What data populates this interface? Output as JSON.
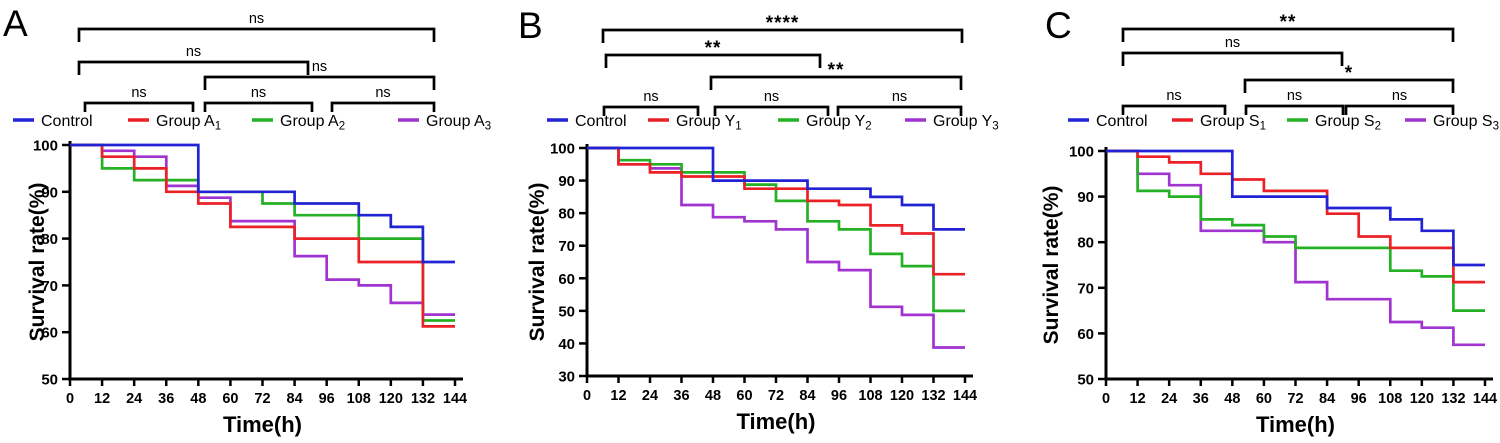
{
  "figure_title": "",
  "chart_data": [
    {
      "type": "line",
      "style": "kaplan-meier-step",
      "panel_letter": "A",
      "xlabel": "Time(h)",
      "ylabel": "Survival rate(%)",
      "xlim": [
        0,
        144
      ],
      "ylim": [
        50,
        100
      ],
      "x_ticks": [
        0,
        12,
        24,
        36,
        48,
        60,
        72,
        84,
        96,
        108,
        120,
        132,
        144
      ],
      "y_ticks": [
        50,
        60,
        70,
        80,
        90,
        100
      ],
      "grid": false,
      "legend_position": "top",
      "series": [
        {
          "name": "Control",
          "sub": "",
          "color": "#2323D6",
          "points": [
            [
              0,
              100
            ],
            [
              48,
              90
            ],
            [
              84,
              87.5
            ],
            [
              108,
              85
            ],
            [
              120,
              82.5
            ],
            [
              132,
              75
            ],
            [
              144,
              75
            ]
          ]
        },
        {
          "name": "Group A",
          "sub": "1",
          "color": "#EB2128",
          "points": [
            [
              0,
              100
            ],
            [
              12,
              97.5
            ],
            [
              24,
              95
            ],
            [
              36,
              90
            ],
            [
              48,
              87.5
            ],
            [
              60,
              82.5
            ],
            [
              84,
              80
            ],
            [
              108,
              75
            ],
            [
              132,
              61.25
            ],
            [
              144,
              61.25
            ]
          ]
        },
        {
          "name": "Group A",
          "sub": "2",
          "color": "#25B125",
          "points": [
            [
              0,
              100
            ],
            [
              12,
              95
            ],
            [
              24,
              92.5
            ],
            [
              48,
              90
            ],
            [
              72,
              87.5
            ],
            [
              84,
              85
            ],
            [
              108,
              80
            ],
            [
              132,
              62.5
            ],
            [
              144,
              62.5
            ]
          ]
        },
        {
          "name": "Group A",
          "sub": "3",
          "color": "#A133D1",
          "points": [
            [
              0,
              100
            ],
            [
              12,
              98.75
            ],
            [
              24,
              97.5
            ],
            [
              36,
              91.25
            ],
            [
              48,
              88.75
            ],
            [
              60,
              83.75
            ],
            [
              84,
              76.25
            ],
            [
              96,
              71.25
            ],
            [
              108,
              70
            ],
            [
              120,
              66.25
            ],
            [
              132,
              63.75
            ],
            [
              144,
              63.75
            ]
          ]
        }
      ],
      "significance": [
        {
          "compare": "Control vs Group A3",
          "label": "ns"
        },
        {
          "compare": "Control vs Group A2",
          "label": "ns"
        },
        {
          "compare": "Group A1 vs Group A3",
          "label": "ns"
        },
        {
          "compare": "Control vs Group A1",
          "label": "ns"
        },
        {
          "compare": "Group A1 vs Group A2",
          "label": "ns"
        },
        {
          "compare": "Group A2 vs Group A3",
          "label": "ns"
        }
      ]
    },
    {
      "type": "line",
      "style": "kaplan-meier-step",
      "panel_letter": "B",
      "xlabel": "Time(h)",
      "ylabel": "Survival rate(%)",
      "xlim": [
        0,
        144
      ],
      "ylim": [
        30,
        100
      ],
      "x_ticks": [
        0,
        12,
        24,
        36,
        48,
        60,
        72,
        84,
        96,
        108,
        120,
        132,
        144
      ],
      "y_ticks": [
        30,
        40,
        50,
        60,
        70,
        80,
        90,
        100
      ],
      "grid": false,
      "legend_position": "top",
      "series": [
        {
          "name": "Control",
          "sub": "",
          "color": "#2323D6",
          "points": [
            [
              0,
              100
            ],
            [
              48,
              90
            ],
            [
              84,
              87.5
            ],
            [
              108,
              85
            ],
            [
              120,
              82.5
            ],
            [
              132,
              75
            ],
            [
              144,
              75
            ]
          ]
        },
        {
          "name": "Group Y",
          "sub": "1",
          "color": "#EB2128",
          "points": [
            [
              0,
              100
            ],
            [
              12,
              95
            ],
            [
              24,
              92.5
            ],
            [
              36,
              91.25
            ],
            [
              60,
              87.5
            ],
            [
              84,
              83.75
            ],
            [
              96,
              82.5
            ],
            [
              108,
              76.25
            ],
            [
              120,
              73.75
            ],
            [
              132,
              61.25
            ],
            [
              144,
              61.25
            ]
          ]
        },
        {
          "name": "Group Y",
          "sub": "2",
          "color": "#25B125",
          "points": [
            [
              0,
              100
            ],
            [
              12,
              96.25
            ],
            [
              24,
              95
            ],
            [
              36,
              92.5
            ],
            [
              60,
              88.75
            ],
            [
              72,
              83.75
            ],
            [
              84,
              77.5
            ],
            [
              96,
              75
            ],
            [
              108,
              67.5
            ],
            [
              120,
              63.75
            ],
            [
              132,
              50
            ],
            [
              144,
              50
            ]
          ]
        },
        {
          "name": "Group Y",
          "sub": "3",
          "color": "#A133D1",
          "points": [
            [
              0,
              100
            ],
            [
              12,
              95
            ],
            [
              24,
              93.75
            ],
            [
              36,
              82.5
            ],
            [
              48,
              78.75
            ],
            [
              60,
              77.5
            ],
            [
              72,
              75
            ],
            [
              84,
              65
            ],
            [
              96,
              62.5
            ],
            [
              108,
              51.25
            ],
            [
              120,
              48.75
            ],
            [
              132,
              38.75
            ],
            [
              144,
              38.75
            ]
          ]
        }
      ],
      "significance": [
        {
          "compare": "Control vs Group Y3",
          "label": "****"
        },
        {
          "compare": "Control vs Group Y2",
          "label": "**"
        },
        {
          "compare": "Group Y1 vs Group Y3",
          "label": "**"
        },
        {
          "compare": "Control vs Group Y1",
          "label": "ns"
        },
        {
          "compare": "Group Y1 vs Group Y2",
          "label": "ns"
        },
        {
          "compare": "Group Y2 vs Group Y3",
          "label": "ns"
        }
      ]
    },
    {
      "type": "line",
      "style": "kaplan-meier-step",
      "panel_letter": "C",
      "xlabel": "Time(h)",
      "ylabel": "Survival rate(%)",
      "xlim": [
        0,
        144
      ],
      "ylim": [
        50,
        100
      ],
      "x_ticks": [
        0,
        12,
        24,
        36,
        48,
        60,
        72,
        84,
        96,
        108,
        120,
        132,
        144
      ],
      "y_ticks": [
        50,
        60,
        70,
        80,
        90,
        100
      ],
      "grid": false,
      "legend_position": "top",
      "series": [
        {
          "name": "Control",
          "sub": "",
          "color": "#2323D6",
          "points": [
            [
              0,
              100
            ],
            [
              48,
              90
            ],
            [
              84,
              87.5
            ],
            [
              108,
              85
            ],
            [
              120,
              82.5
            ],
            [
              132,
              75
            ],
            [
              144,
              75
            ]
          ]
        },
        {
          "name": "Group S",
          "sub": "1",
          "color": "#EB2128",
          "points": [
            [
              0,
              100
            ],
            [
              12,
              98.75
            ],
            [
              24,
              97.5
            ],
            [
              36,
              95
            ],
            [
              48,
              93.75
            ],
            [
              60,
              91.25
            ],
            [
              84,
              86.25
            ],
            [
              96,
              81.25
            ],
            [
              108,
              78.75
            ],
            [
              132,
              71.25
            ],
            [
              144,
              71.25
            ]
          ]
        },
        {
          "name": "Group S",
          "sub": "2",
          "color": "#25B125",
          "points": [
            [
              0,
              100
            ],
            [
              12,
              91.25
            ],
            [
              24,
              90
            ],
            [
              36,
              85
            ],
            [
              48,
              83.75
            ],
            [
              60,
              81.25
            ],
            [
              72,
              78.75
            ],
            [
              108,
              73.75
            ],
            [
              120,
              72.5
            ],
            [
              132,
              65
            ],
            [
              144,
              65
            ]
          ]
        },
        {
          "name": "Group S",
          "sub": "3",
          "color": "#A133D1",
          "points": [
            [
              0,
              100
            ],
            [
              12,
              95
            ],
            [
              24,
              92.5
            ],
            [
              36,
              82.5
            ],
            [
              60,
              80
            ],
            [
              72,
              71.25
            ],
            [
              84,
              67.5
            ],
            [
              108,
              62.5
            ],
            [
              120,
              61.25
            ],
            [
              132,
              57.5
            ],
            [
              144,
              57.5
            ]
          ]
        }
      ],
      "significance": [
        {
          "compare": "Control vs Group S3",
          "label": "**"
        },
        {
          "compare": "Control vs Group S2",
          "label": "ns"
        },
        {
          "compare": "Group S1 vs Group S3",
          "label": "*"
        },
        {
          "compare": "Control vs Group S1",
          "label": "ns"
        },
        {
          "compare": "Group S1 vs Group S2",
          "label": "ns"
        },
        {
          "compare": "Group S2 vs Group S3",
          "label": "ns"
        }
      ]
    }
  ]
}
